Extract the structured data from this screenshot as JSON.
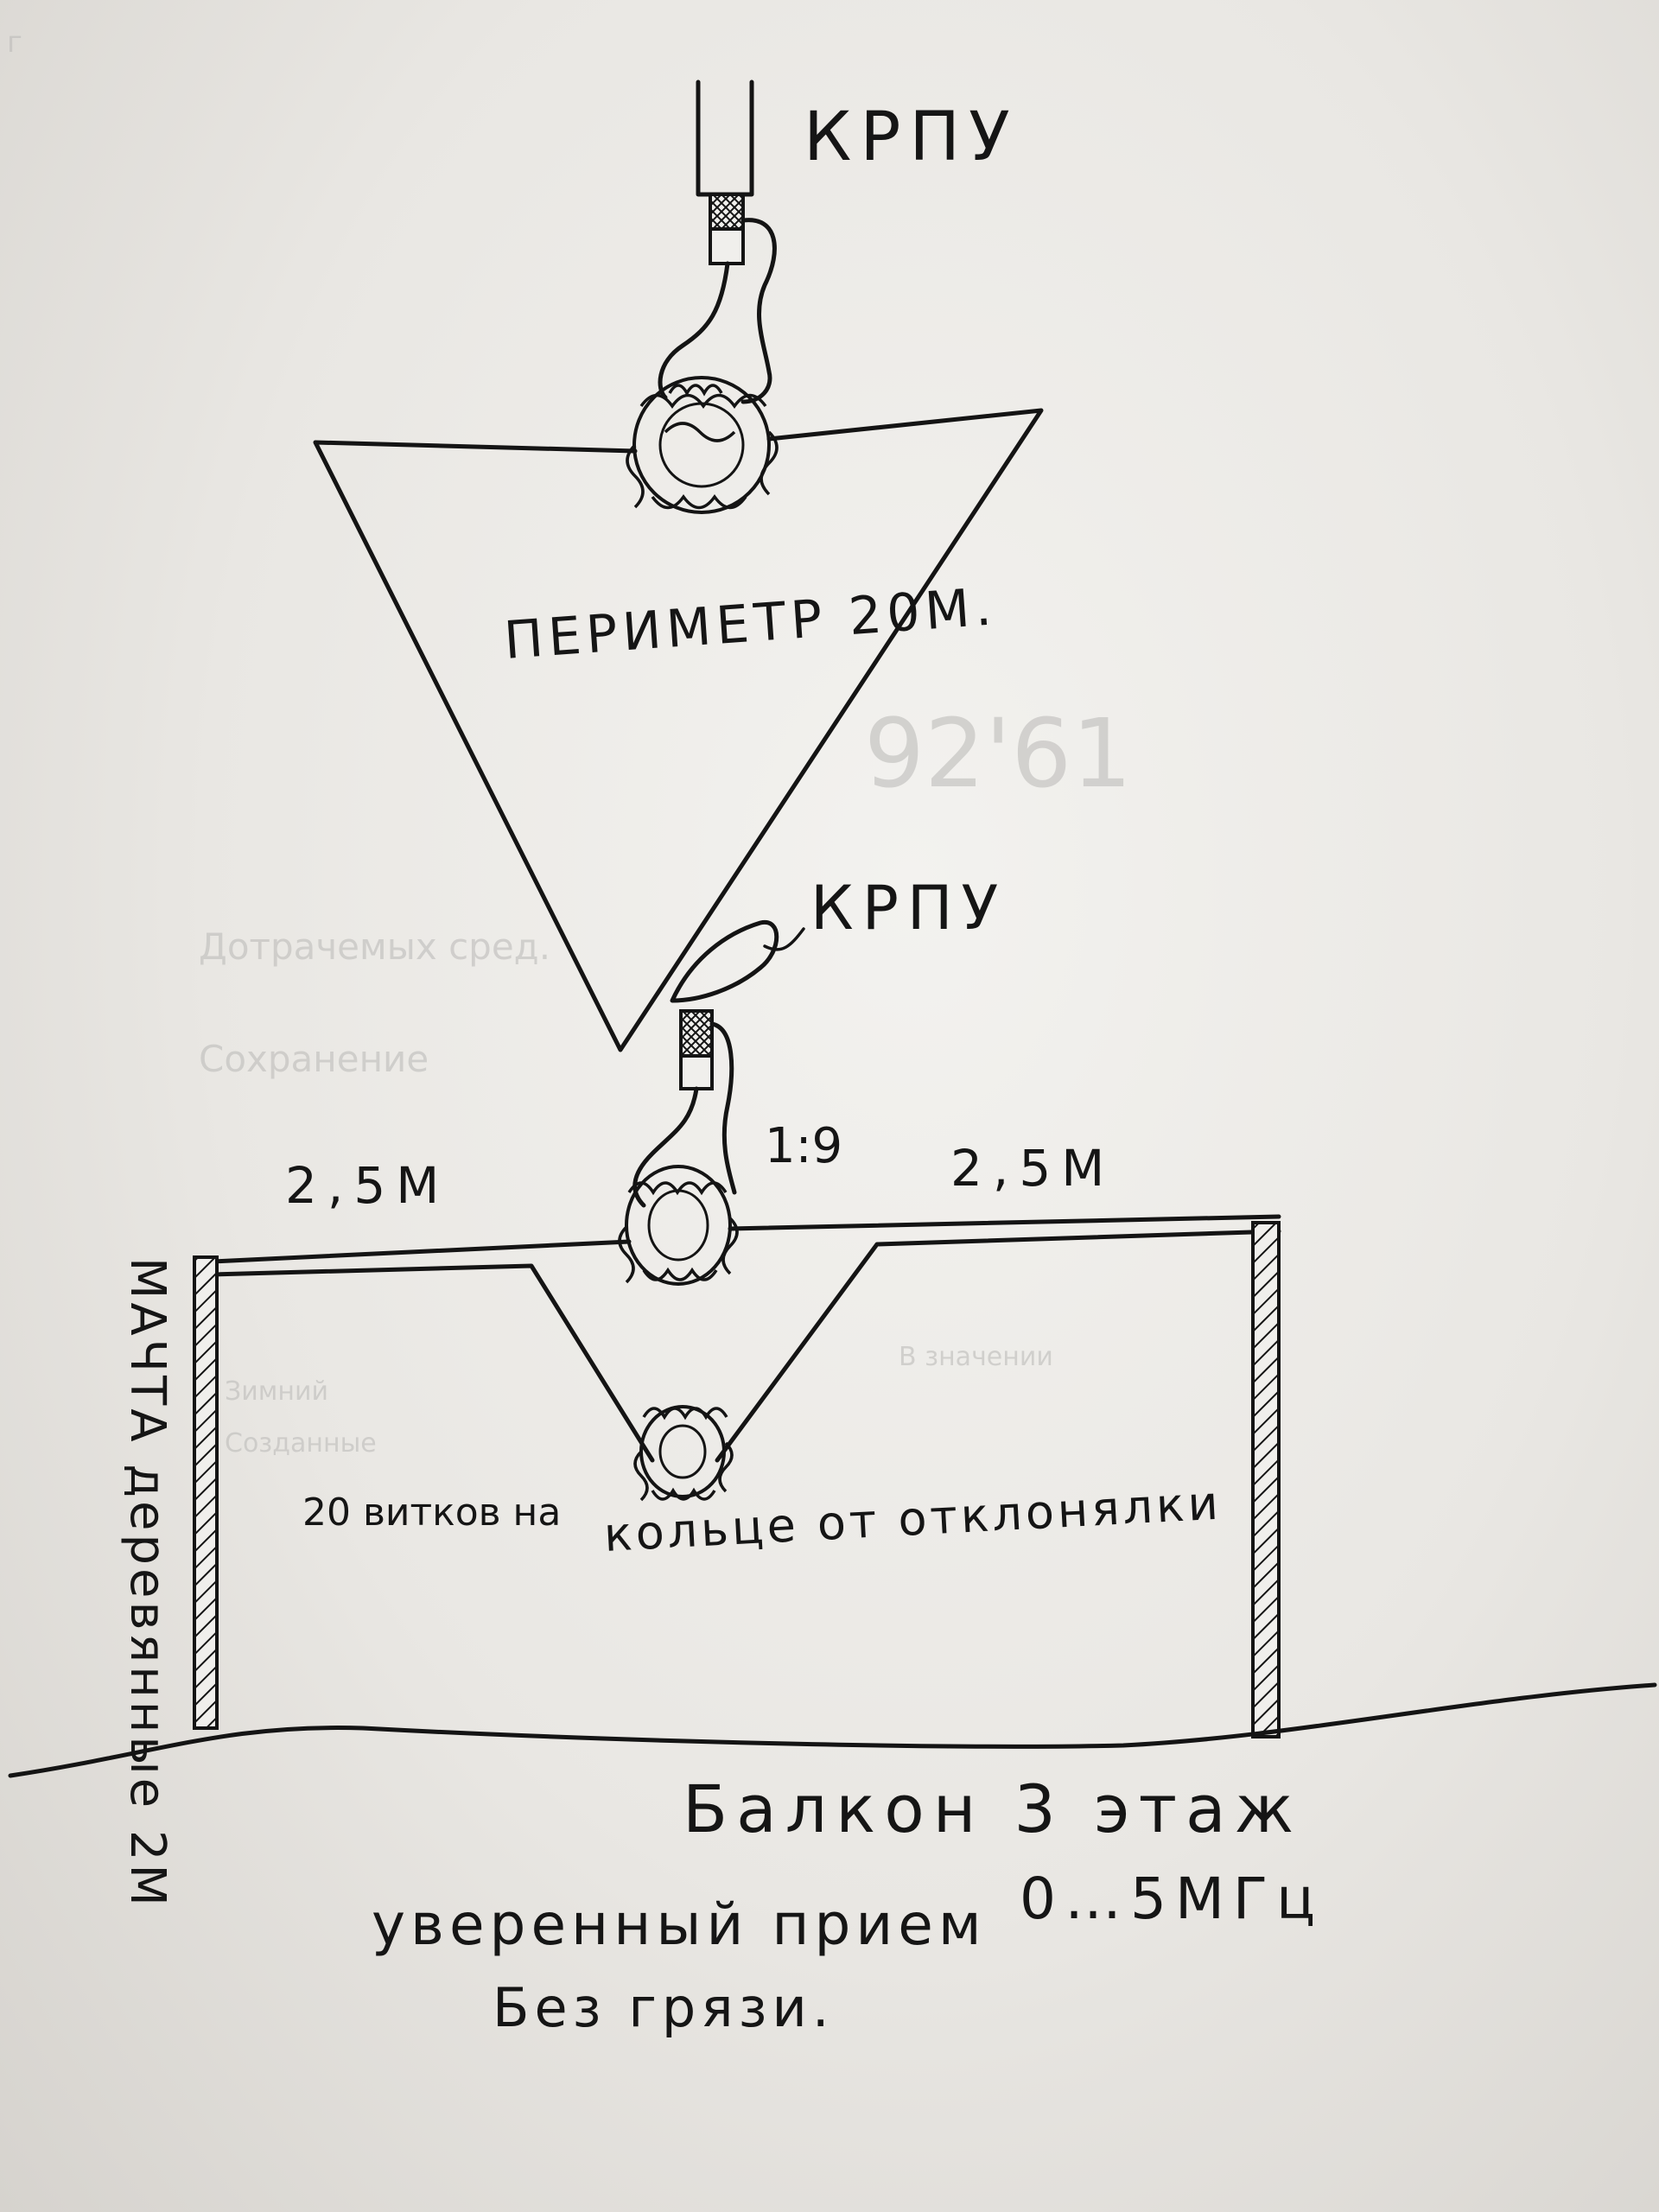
{
  "diagram": {
    "labels": {
      "krpu_top": "КРПУ",
      "krpu_middle": "КРПУ",
      "perimeter": "ПЕРИМЕТР 20М.",
      "ratio": "1:9",
      "length_left": "2,5М",
      "length_right": "2,5М",
      "turns_note_left": "20 витков на",
      "turns_note_right": "кольце от отклонялки",
      "mast_note": "МАЧТА деревянные 2М",
      "balcony": "Балкон 3 этаж",
      "reception": "уверенный прием",
      "range": "0…5МГц",
      "no_noise": "Без грязи.",
      "corner_mark": "г"
    },
    "faint_background_text": [
      "92'61",
      "Дотрачемых сред.",
      "Сохранение",
      "В значении",
      "Зимний",
      "Созданные"
    ]
  }
}
